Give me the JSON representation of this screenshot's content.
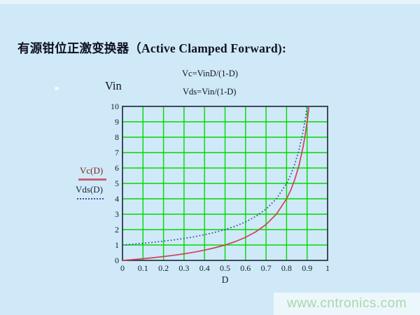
{
  "page": {
    "background_color": "#cfe9f8",
    "watermark": {
      "text": "www.cntronics.com",
      "text_color": "#a9d7a9",
      "band_color": "#ecf7fc"
    }
  },
  "title": {
    "text": "有源钳位正激变换器（Active Clamped Forward):"
  },
  "annotations": {
    "y_axis_title": "Vin",
    "formula_vc": "Vc=VinD/(1-D)",
    "formula_vds": "Vds=Vin/(1-D)"
  },
  "legend": {
    "items": [
      {
        "label": "Vc(D)",
        "label_color": "#7a2626",
        "line_color": "#cc6070",
        "style": "solid"
      },
      {
        "label": "Vds(D)",
        "label_color": "#1d2535",
        "line_color": "#3b4fa0",
        "style": "dotted"
      }
    ]
  },
  "chart_data": {
    "type": "line",
    "title": "",
    "xlabel": "D",
    "ylabel": "Vin",
    "xlim": [
      0,
      1
    ],
    "ylim": [
      0,
      10
    ],
    "x_ticks": [
      "0",
      "0.1",
      "0.2",
      "0.3",
      "0.4",
      "0.5",
      "0.6",
      "0.7",
      "0.8",
      "0.9",
      "1"
    ],
    "y_ticks": [
      "0",
      "1",
      "2",
      "3",
      "4",
      "5",
      "6",
      "7",
      "8",
      "9",
      "10"
    ],
    "grid": true,
    "grid_color": "#00d900",
    "frame_color": "#2b3a47",
    "tick_label_color": "#15202b",
    "legend_position": "left-outside",
    "series": [
      {
        "name": "Vc(D)",
        "formula": "Vc=VinD/(1-D)",
        "color": "#cc4455",
        "style": "solid",
        "x": [
          0,
          0.05,
          0.1,
          0.15,
          0.2,
          0.25,
          0.3,
          0.35,
          0.4,
          0.45,
          0.5,
          0.55,
          0.6,
          0.65,
          0.7,
          0.75,
          0.8,
          0.82,
          0.84,
          0.86,
          0.88,
          0.89,
          0.9,
          0.905,
          0.9091
        ],
        "y": [
          0,
          0.053,
          0.111,
          0.176,
          0.25,
          0.333,
          0.429,
          0.538,
          0.667,
          0.818,
          1,
          1.222,
          1.5,
          1.857,
          2.333,
          3,
          4,
          4.556,
          5.25,
          6.143,
          7.333,
          8.091,
          9,
          9.526,
          10
        ]
      },
      {
        "name": "Vds(D)",
        "formula": "Vds=Vin/(1-D)",
        "color": "#3b4fa0",
        "style": "dotted",
        "x": [
          0,
          0.05,
          0.1,
          0.15,
          0.2,
          0.25,
          0.3,
          0.35,
          0.4,
          0.45,
          0.5,
          0.55,
          0.6,
          0.65,
          0.7,
          0.75,
          0.8,
          0.82,
          0.84,
          0.86,
          0.88,
          0.89,
          0.9
        ],
        "y": [
          1,
          1.053,
          1.111,
          1.176,
          1.25,
          1.333,
          1.429,
          1.538,
          1.667,
          1.818,
          2,
          2.222,
          2.5,
          2.857,
          3.333,
          4,
          5,
          5.556,
          6.25,
          7.143,
          8.333,
          9.091,
          10
        ]
      }
    ]
  }
}
